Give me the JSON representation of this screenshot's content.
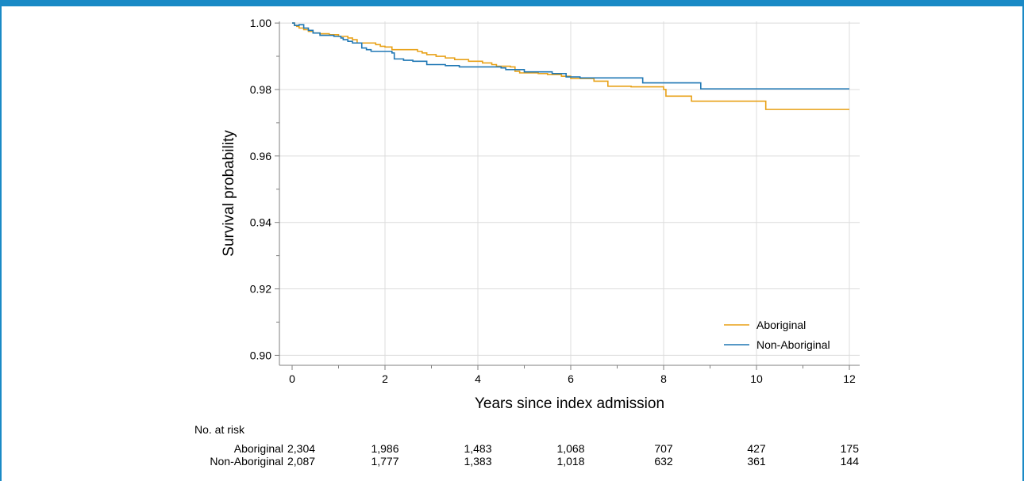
{
  "chart_data": {
    "type": "line",
    "subtype": "kaplan-meier step",
    "xlabel": "Years since index admission",
    "ylabel": "Survival probability",
    "xlim": [
      0,
      12
    ],
    "ylim": [
      0.897,
      1.0005
    ],
    "x_ticks": [
      0,
      2,
      4,
      6,
      8,
      10,
      12
    ],
    "x_tick_labels": [
      "0",
      "2",
      "4",
      "6",
      "8",
      "10",
      "12"
    ],
    "y_ticks": [
      0.9,
      0.92,
      0.94,
      0.96,
      0.98,
      1.0
    ],
    "y_tick_labels": [
      "0.90",
      "0.92",
      "0.94",
      "0.96",
      "0.98",
      "1.00"
    ],
    "grid": true,
    "legend_position": "bottom-right",
    "series": [
      {
        "name": "Aboriginal",
        "color": "#e8a117",
        "points": [
          [
            0,
            1.0
          ],
          [
            0.05,
            0.9993
          ],
          [
            0.1,
            0.999
          ],
          [
            0.15,
            0.9985
          ],
          [
            0.25,
            0.998
          ],
          [
            0.35,
            0.9975
          ],
          [
            0.45,
            0.997
          ],
          [
            0.6,
            0.9968
          ],
          [
            0.8,
            0.9965
          ],
          [
            1.0,
            0.996
          ],
          [
            1.2,
            0.9955
          ],
          [
            1.3,
            0.995
          ],
          [
            1.4,
            0.994
          ],
          [
            1.8,
            0.9935
          ],
          [
            1.9,
            0.993
          ],
          [
            2.0,
            0.9928
          ],
          [
            2.15,
            0.992
          ],
          [
            2.7,
            0.9915
          ],
          [
            2.8,
            0.991
          ],
          [
            2.9,
            0.9905
          ],
          [
            3.1,
            0.99
          ],
          [
            3.3,
            0.9895
          ],
          [
            3.5,
            0.989
          ],
          [
            3.8,
            0.9885
          ],
          [
            4.1,
            0.988
          ],
          [
            4.3,
            0.9875
          ],
          [
            4.4,
            0.987
          ],
          [
            4.7,
            0.9868
          ],
          [
            4.8,
            0.9855
          ],
          [
            4.9,
            0.985
          ],
          [
            5.3,
            0.9848
          ],
          [
            5.5,
            0.9845
          ],
          [
            5.8,
            0.984
          ],
          [
            6.0,
            0.9833
          ],
          [
            6.5,
            0.9825
          ],
          [
            6.8,
            0.981
          ],
          [
            7.3,
            0.9808
          ],
          [
            8.0,
            0.98
          ],
          [
            8.05,
            0.978
          ],
          [
            8.6,
            0.9765
          ],
          [
            10.2,
            0.974
          ],
          [
            12.0,
            0.974
          ]
        ]
      },
      {
        "name": "Non-Aboriginal",
        "color": "#1f77b4",
        "points": [
          [
            0,
            1.0
          ],
          [
            0.05,
            0.9993
          ],
          [
            0.15,
            0.9995
          ],
          [
            0.25,
            0.9985
          ],
          [
            0.35,
            0.9978
          ],
          [
            0.45,
            0.997
          ],
          [
            0.6,
            0.9963
          ],
          [
            0.9,
            0.996
          ],
          [
            1.05,
            0.9955
          ],
          [
            1.1,
            0.995
          ],
          [
            1.2,
            0.9945
          ],
          [
            1.3,
            0.994
          ],
          [
            1.5,
            0.9925
          ],
          [
            1.6,
            0.992
          ],
          [
            1.7,
            0.9915
          ],
          [
            2.15,
            0.991
          ],
          [
            2.2,
            0.9892
          ],
          [
            2.4,
            0.9888
          ],
          [
            2.6,
            0.9885
          ],
          [
            2.9,
            0.9875
          ],
          [
            3.3,
            0.9872
          ],
          [
            3.6,
            0.9868
          ],
          [
            4.5,
            0.9865
          ],
          [
            4.6,
            0.986
          ],
          [
            5.0,
            0.9853
          ],
          [
            5.6,
            0.9848
          ],
          [
            5.9,
            0.9838
          ],
          [
            6.2,
            0.9835
          ],
          [
            7.55,
            0.982
          ],
          [
            8.8,
            0.9802
          ],
          [
            12.0,
            0.9802
          ]
        ]
      }
    ],
    "risk_table": {
      "title": "No. at risk",
      "rows": [
        {
          "label": "Aboriginal",
          "values": [
            "2,304",
            "1,986",
            "1,483",
            "1,068",
            "707",
            "427",
            "175"
          ]
        },
        {
          "label": "Non-Aboriginal",
          "values": [
            "2,087",
            "1,777",
            "1,383",
            "1,018",
            "632",
            "361",
            "144"
          ]
        }
      ]
    }
  }
}
